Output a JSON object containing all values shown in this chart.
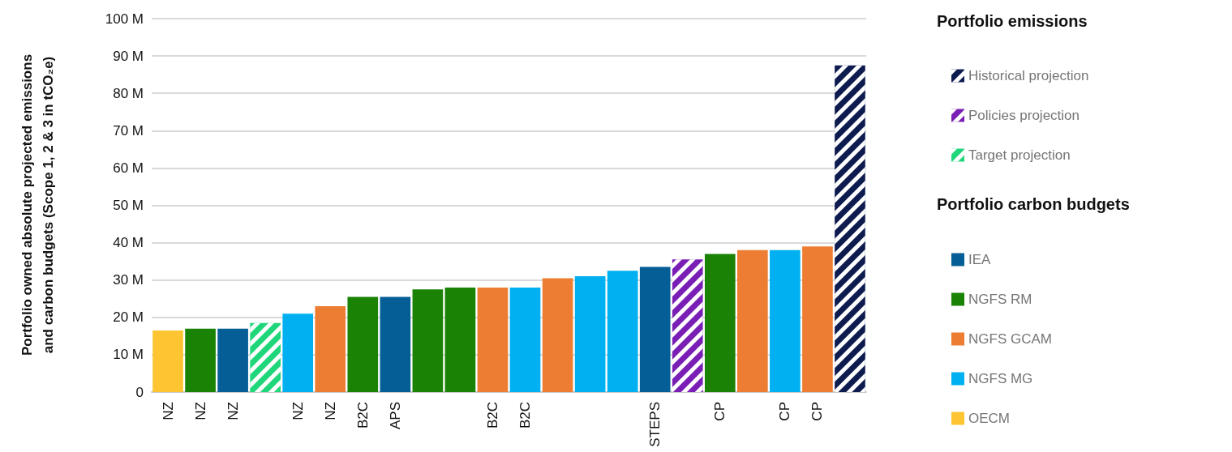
{
  "chart_data": {
    "type": "bar",
    "ylabel": "Portfolio owned absolute projected emissions and carbon budgets (Scope 1, 2 & 3 in tCO₂e)",
    "legend_title": "Portfolio emissions",
    "annotations": [
      "Portfolio carbon budgets"
    ],
    "categories": [
      "NZ",
      "NZ",
      "NZ",
      null,
      "NZ",
      "NZ",
      "B2C",
      "APS",
      null,
      null,
      "B2C",
      "B2C",
      null,
      null,
      null,
      "STEPS",
      null,
      "CP",
      null,
      "CP",
      "CP",
      null
    ],
    "series": [
      {
        "name": "Historical projection",
        "color": "#0d1b4f",
        "values": [
          null,
          null,
          null,
          null,
          null,
          null,
          null,
          null,
          null,
          null,
          null,
          null,
          null,
          null,
          null,
          null,
          null,
          null,
          null,
          null,
          null,
          87.5
        ]
      },
      {
        "name": "Policies projection",
        "color": "#7a1fb5",
        "values": [
          null,
          null,
          null,
          null,
          null,
          null,
          null,
          null,
          null,
          null,
          null,
          null,
          null,
          null,
          null,
          null,
          35.5,
          null,
          null,
          null,
          null,
          null
        ]
      },
      {
        "name": "Target projection",
        "color": "#1fd67a",
        "values": [
          null,
          null,
          null,
          18.5,
          null,
          null,
          null,
          null,
          null,
          null,
          null,
          null,
          null,
          null,
          null,
          null,
          null,
          null,
          null,
          null,
          null,
          null
        ]
      },
      {
        "name": "IEA",
        "color": "#055f96",
        "values": [
          null,
          null,
          17,
          null,
          null,
          null,
          null,
          25.5,
          null,
          null,
          null,
          null,
          null,
          null,
          null,
          33.5,
          null,
          null,
          null,
          null,
          null,
          null
        ]
      },
      {
        "name": "NGFS RM",
        "color": "#1a8204",
        "values": [
          null,
          17,
          null,
          null,
          null,
          null,
          25.5,
          null,
          27.5,
          28,
          null,
          null,
          null,
          null,
          null,
          null,
          null,
          37,
          null,
          null,
          null,
          null
        ]
      },
      {
        "name": "NGFS GCAM",
        "color": "#ed7d33",
        "values": [
          null,
          null,
          null,
          null,
          null,
          23,
          null,
          null,
          null,
          null,
          28,
          null,
          30.5,
          null,
          null,
          null,
          null,
          null,
          38,
          null,
          39,
          null
        ]
      },
      {
        "name": "NGFS MG",
        "color": "#00b0f0",
        "values": [
          null,
          null,
          null,
          null,
          21,
          null,
          null,
          null,
          null,
          null,
          null,
          28,
          null,
          31,
          32.5,
          null,
          null,
          null,
          null,
          38,
          null,
          null
        ]
      },
      {
        "name": "OECM",
        "color": "#fdc532",
        "values": [
          16.5,
          null,
          null,
          null,
          null,
          null,
          null,
          null,
          null,
          null,
          null,
          null,
          null,
          null,
          null,
          null,
          null,
          null,
          null,
          null,
          null,
          null
        ]
      }
    ],
    "ylim": [
      0,
      100
    ],
    "yticks": [
      0,
      {
        "value": 10,
        "label": "10 M"
      },
      {
        "value": 20,
        "label": "20 M"
      },
      {
        "value": 30,
        "label": "30 M"
      },
      {
        "value": 40,
        "label": "40 M"
      },
      {
        "value": 50,
        "label": "50 M"
      },
      {
        "value": 60,
        "label": "60 M"
      },
      {
        "value": 70,
        "label": "70 M"
      },
      {
        "value": 80,
        "label": "80 M"
      },
      {
        "value": 90,
        "label": "90 M"
      },
      {
        "value": 100,
        "label": "100 M"
      }
    ],
    "grid": "y",
    "legend": "right"
  }
}
